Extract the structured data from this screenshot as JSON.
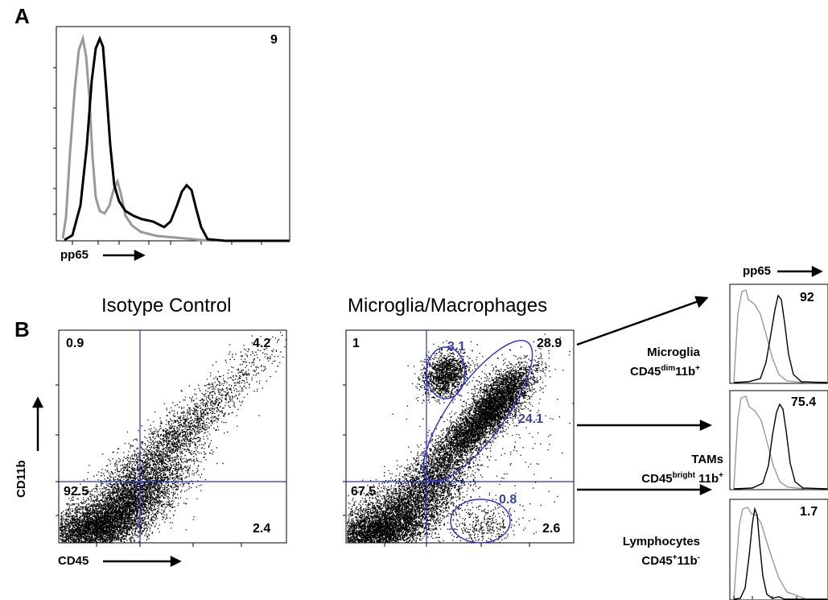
{
  "panel_a": {
    "letter": "A",
    "value": "9",
    "xlabel": "pp65"
  },
  "panel_b": {
    "letter": "B",
    "isotype": {
      "title": "Isotype Control",
      "q_ul": "0.9",
      "q_ur": "4.2",
      "q_ll": "92.5",
      "q_lr": "2.4",
      "ylabel": "CD11b",
      "xlabel": "CD45"
    },
    "micro": {
      "title": "Microglia/Macrophages",
      "q_ul": "1",
      "q_ur": "28.9",
      "q_ll": "67.5",
      "q_lr": "2.6",
      "gate_microglia": "3.1",
      "gate_tams": "24.1",
      "gate_lymph": "0.8"
    },
    "populations": {
      "microglia_name": "Microglia",
      "microglia_marker_base": "CD45",
      "microglia_marker_sup": "dim",
      "microglia_marker_tail": "11b",
      "microglia_marker_tail_sup": "+",
      "tams_name": "TAMs",
      "tams_marker_base": "CD45",
      "tams_marker_sup": "bright",
      "tams_marker_tail": " 11b",
      "tams_marker_tail_sup": "+",
      "lymph_name": "Lymphocytes",
      "lymph_marker_base": "CD45",
      "lymph_marker_sup": "+",
      "lymph_marker_tail": "11b",
      "lymph_marker_tail_sup": "-"
    },
    "histograms": {
      "axis_label": "pp65",
      "v1": "92",
      "v2": "75.4",
      "v3": "1.7"
    }
  },
  "colors": {
    "gate": "#2b2fd0",
    "gate_text": "#3b3fa0",
    "isotype_line": "#999999",
    "sample_line": "#000000"
  }
}
